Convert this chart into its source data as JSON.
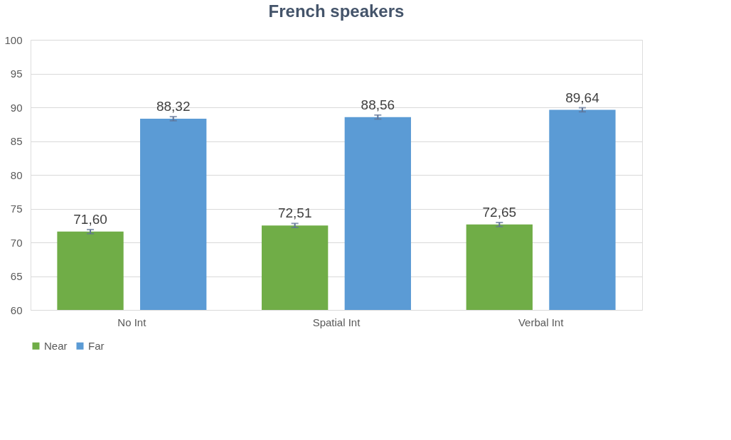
{
  "chart_data": {
    "type": "bar",
    "title": "French speakers",
    "categories": [
      "No Int",
      "Spatial Int",
      "Verbal Int"
    ],
    "series": [
      {
        "name": "Near",
        "color": "#70ad47",
        "values": [
          71.6,
          72.51,
          72.65
        ],
        "value_labels": [
          "71,60",
          "72,51",
          "72,65"
        ],
        "errors": [
          0.3,
          0.3,
          0.3
        ]
      },
      {
        "name": "Far",
        "color": "#5b9bd5",
        "values": [
          88.32,
          88.56,
          89.64
        ],
        "value_labels": [
          "88,32",
          "88,56",
          "89,64"
        ],
        "errors": [
          0.3,
          0.3,
          0.3
        ]
      }
    ],
    "ylim": [
      60,
      100
    ],
    "yticks": [
      60,
      65,
      70,
      75,
      80,
      85,
      90,
      95,
      100
    ],
    "grid": "y",
    "legend": "bottom"
  }
}
